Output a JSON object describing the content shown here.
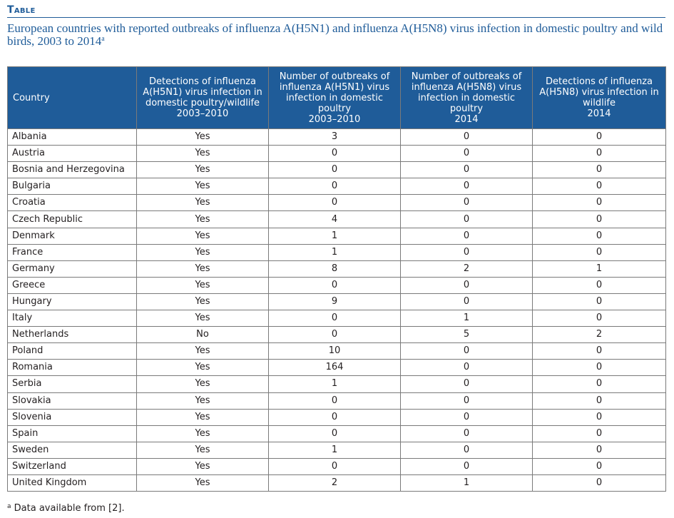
{
  "label": "Table",
  "caption": {
    "text": "European countries with reported outbreaks of influenza A(H5N1) and influenza A(H5N8) virus infection in domestic poultry and wild birds, 2003 to 2014",
    "sup": "a"
  },
  "headers": [
    "Country",
    "Detections of influenza\nA(H5N1) virus infection in\ndomestic poultry/wildlife\n2003–2010",
    "Number of outbreaks of\ninfluenza A(H5N1) virus\ninfection in domestic\npoultry\n2003–2010",
    "Number of outbreaks of\ninfluenza A(H5N8) virus\ninfection in domestic\npoultry\n2014",
    "Detections of influenza\nA(H5N8) virus infection in\nwildlife\n2014"
  ],
  "rows": [
    [
      "Albania",
      "Yes",
      "3",
      "0",
      "0"
    ],
    [
      "Austria",
      "Yes",
      "0",
      "0",
      "0"
    ],
    [
      "Bosnia and Herzegovina",
      "Yes",
      "0",
      "0",
      "0"
    ],
    [
      "Bulgaria",
      "Yes",
      "0",
      "0",
      "0"
    ],
    [
      "Croatia",
      "Yes",
      "0",
      "0",
      "0"
    ],
    [
      "Czech Republic",
      "Yes",
      "4",
      "0",
      "0"
    ],
    [
      "Denmark",
      "Yes",
      "1",
      "0",
      "0"
    ],
    [
      "France",
      "Yes",
      "1",
      "0",
      "0"
    ],
    [
      "Germany",
      "Yes",
      "8",
      "2",
      "1"
    ],
    [
      "Greece",
      "Yes",
      "0",
      "0",
      "0"
    ],
    [
      "Hungary",
      "Yes",
      "9",
      "0",
      "0"
    ],
    [
      "Italy",
      "Yes",
      "0",
      "1",
      "0"
    ],
    [
      "Netherlands",
      "No",
      "0",
      "5",
      "2"
    ],
    [
      "Poland",
      "Yes",
      "10",
      "0",
      "0"
    ],
    [
      "Romania",
      "Yes",
      "164",
      "0",
      "0"
    ],
    [
      "Serbia",
      "Yes",
      "1",
      "0",
      "0"
    ],
    [
      "Slovakia",
      "Yes",
      "0",
      "0",
      "0"
    ],
    [
      "Slovenia",
      "Yes",
      "0",
      "0",
      "0"
    ],
    [
      "Spain",
      "Yes",
      "0",
      "0",
      "0"
    ],
    [
      "Sweden",
      "Yes",
      "1",
      "0",
      "0"
    ],
    [
      "Switzerland",
      "Yes",
      "0",
      "0",
      "0"
    ],
    [
      "United Kingdom",
      "Yes",
      "2",
      "1",
      "0"
    ]
  ],
  "footnote": {
    "sup": "a",
    "text": "Data available from [2]."
  },
  "colors": {
    "accent": "#1f5c99",
    "header_text": "#ffffff",
    "body_text": "#231f20",
    "grid": "#7a7a7a"
  }
}
